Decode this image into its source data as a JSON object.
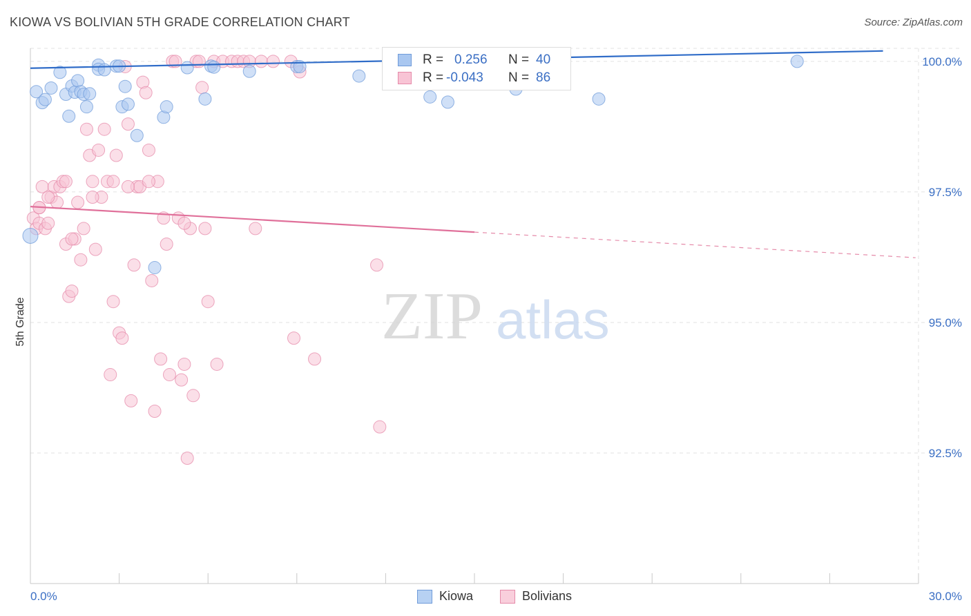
{
  "title": "KIOWA VS BOLIVIAN 5TH GRADE CORRELATION CHART",
  "source": "Source: ZipAtlas.com",
  "watermark": {
    "zip": "ZIP",
    "atlas": "atlas"
  },
  "legend": {
    "rows": [
      {
        "r_label": "R =",
        "r_value": "0.256",
        "n_label": "N =",
        "n_value": "40",
        "color": "#a9c7f0",
        "border": "#6f9bd9"
      },
      {
        "r_label": "R =",
        "r_value": "-0.043",
        "n_label": "N =",
        "n_value": "86",
        "color": "#f8c4d5",
        "border": "#e58aa9"
      }
    ]
  },
  "bottom_legend": [
    {
      "label": "Kiowa",
      "color": "#b7d1f3",
      "border": "#6f9bd9"
    },
    {
      "label": "Bolivians",
      "color": "#f9cfdc",
      "border": "#e58aa9"
    }
  ],
  "chart_data": {
    "type": "scatter",
    "title": "KIOWA VS BOLIVIAN 5TH GRADE CORRELATION CHART",
    "xlabel": "",
    "ylabel": "5th Grade",
    "xlim": [
      0.0,
      30.0
    ],
    "ylim": [
      90.0,
      100.0
    ],
    "x_tick_labels": [
      "0.0%",
      "30.0%"
    ],
    "y_ticks": [
      92.5,
      95.0,
      97.5,
      100.0
    ],
    "y_tick_labels": [
      "92.5%",
      "95.0%",
      "97.5%",
      "100.0%"
    ],
    "grid": true,
    "series": [
      {
        "name": "Kiowa",
        "color": "#6f9bd9",
        "fill": "#a9c7f0",
        "trend": {
          "x0": 0.0,
          "y0": 99.87,
          "x1": 28.8,
          "y1": 100.2
        },
        "points": [
          [
            0.0,
            96.66
          ],
          [
            0.2,
            99.42
          ],
          [
            0.4,
            99.21
          ],
          [
            0.5,
            99.27
          ],
          [
            0.7,
            99.49
          ],
          [
            1.0,
            99.79
          ],
          [
            1.2,
            99.37
          ],
          [
            1.3,
            98.95
          ],
          [
            1.4,
            99.53
          ],
          [
            1.5,
            99.41
          ],
          [
            1.6,
            99.63
          ],
          [
            1.7,
            99.42
          ],
          [
            1.8,
            99.37
          ],
          [
            1.9,
            99.13
          ],
          [
            2.0,
            99.38
          ],
          [
            2.3,
            99.93
          ],
          [
            2.3,
            99.85
          ],
          [
            2.5,
            99.84
          ],
          [
            2.9,
            99.91
          ],
          [
            3.0,
            99.91
          ],
          [
            3.1,
            99.13
          ],
          [
            3.2,
            99.52
          ],
          [
            3.3,
            99.18
          ],
          [
            3.6,
            98.58
          ],
          [
            4.2,
            96.05
          ],
          [
            4.5,
            98.93
          ],
          [
            4.6,
            99.13
          ],
          [
            5.3,
            99.88
          ],
          [
            5.9,
            99.28
          ],
          [
            6.1,
            99.91
          ],
          [
            6.2,
            99.89
          ],
          [
            7.4,
            99.81
          ],
          [
            9.0,
            99.9
          ],
          [
            9.1,
            99.9
          ],
          [
            11.1,
            99.72
          ],
          [
            13.5,
            99.32
          ],
          [
            14.1,
            99.22
          ],
          [
            16.4,
            99.47
          ],
          [
            19.2,
            99.28
          ],
          [
            25.9,
            100.0
          ]
        ]
      },
      {
        "name": "Bolivians",
        "color": "#e58aa9",
        "fill": "#f8c4d5",
        "trend": {
          "x0": 0.0,
          "y0": 97.22,
          "x1": 15.0,
          "y1": 96.73
        },
        "trend_dashed": {
          "x0": 15.0,
          "y0": 96.73,
          "x1": 29.9,
          "y1": 96.24
        },
        "points": [
          [
            0.1,
            97.0
          ],
          [
            0.2,
            96.8
          ],
          [
            0.3,
            97.2
          ],
          [
            0.3,
            96.9
          ],
          [
            0.4,
            97.6
          ],
          [
            0.5,
            96.8
          ],
          [
            0.6,
            96.9
          ],
          [
            0.7,
            97.4
          ],
          [
            0.8,
            97.6
          ],
          [
            0.9,
            97.3
          ],
          [
            1.0,
            97.6
          ],
          [
            1.1,
            97.7
          ],
          [
            1.2,
            96.5
          ],
          [
            1.3,
            95.5
          ],
          [
            1.4,
            95.6
          ],
          [
            1.5,
            96.6
          ],
          [
            1.6,
            97.3
          ],
          [
            1.7,
            96.2
          ],
          [
            1.8,
            96.8
          ],
          [
            1.9,
            98.7
          ],
          [
            2.0,
            98.2
          ],
          [
            2.1,
            97.7
          ],
          [
            2.2,
            96.4
          ],
          [
            2.3,
            98.3
          ],
          [
            2.4,
            97.4
          ],
          [
            2.5,
            98.7
          ],
          [
            2.6,
            97.7
          ],
          [
            2.7,
            94.0
          ],
          [
            2.8,
            95.4
          ],
          [
            2.9,
            98.2
          ],
          [
            3.0,
            94.8
          ],
          [
            3.1,
            94.7
          ],
          [
            3.2,
            99.9
          ],
          [
            3.3,
            98.8
          ],
          [
            3.4,
            93.5
          ],
          [
            3.5,
            96.1
          ],
          [
            3.6,
            97.6
          ],
          [
            3.7,
            97.6
          ],
          [
            3.8,
            99.6
          ],
          [
            3.9,
            99.4
          ],
          [
            4.0,
            98.3
          ],
          [
            4.1,
            95.8
          ],
          [
            4.2,
            93.3
          ],
          [
            4.3,
            97.7
          ],
          [
            4.4,
            94.3
          ],
          [
            4.5,
            97.0
          ],
          [
            4.6,
            96.5
          ],
          [
            4.7,
            94.0
          ],
          [
            4.8,
            100.0
          ],
          [
            4.9,
            100.0
          ],
          [
            5.0,
            97.0
          ],
          [
            5.1,
            93.9
          ],
          [
            5.2,
            94.2
          ],
          [
            5.3,
            92.4
          ],
          [
            5.4,
            96.8
          ],
          [
            5.5,
            93.6
          ],
          [
            5.6,
            100.0
          ],
          [
            5.7,
            100.0
          ],
          [
            5.8,
            99.5
          ],
          [
            5.9,
            96.8
          ],
          [
            6.0,
            95.4
          ],
          [
            6.2,
            100.0
          ],
          [
            6.3,
            94.2
          ],
          [
            6.5,
            100.0
          ],
          [
            6.8,
            100.0
          ],
          [
            7.0,
            100.0
          ],
          [
            7.2,
            100.0
          ],
          [
            7.4,
            100.0
          ],
          [
            7.6,
            96.8
          ],
          [
            7.8,
            100.0
          ],
          [
            8.2,
            100.0
          ],
          [
            8.8,
            100.0
          ],
          [
            8.9,
            94.7
          ],
          [
            9.1,
            99.8
          ],
          [
            9.6,
            94.3
          ],
          [
            11.7,
            96.1
          ],
          [
            11.8,
            93.0
          ],
          [
            0.3,
            97.2
          ],
          [
            0.6,
            97.4
          ],
          [
            1.2,
            97.7
          ],
          [
            1.4,
            96.6
          ],
          [
            2.1,
            97.4
          ],
          [
            2.8,
            97.7
          ],
          [
            3.3,
            97.6
          ],
          [
            4.0,
            97.7
          ],
          [
            5.2,
            96.9
          ]
        ]
      }
    ]
  }
}
